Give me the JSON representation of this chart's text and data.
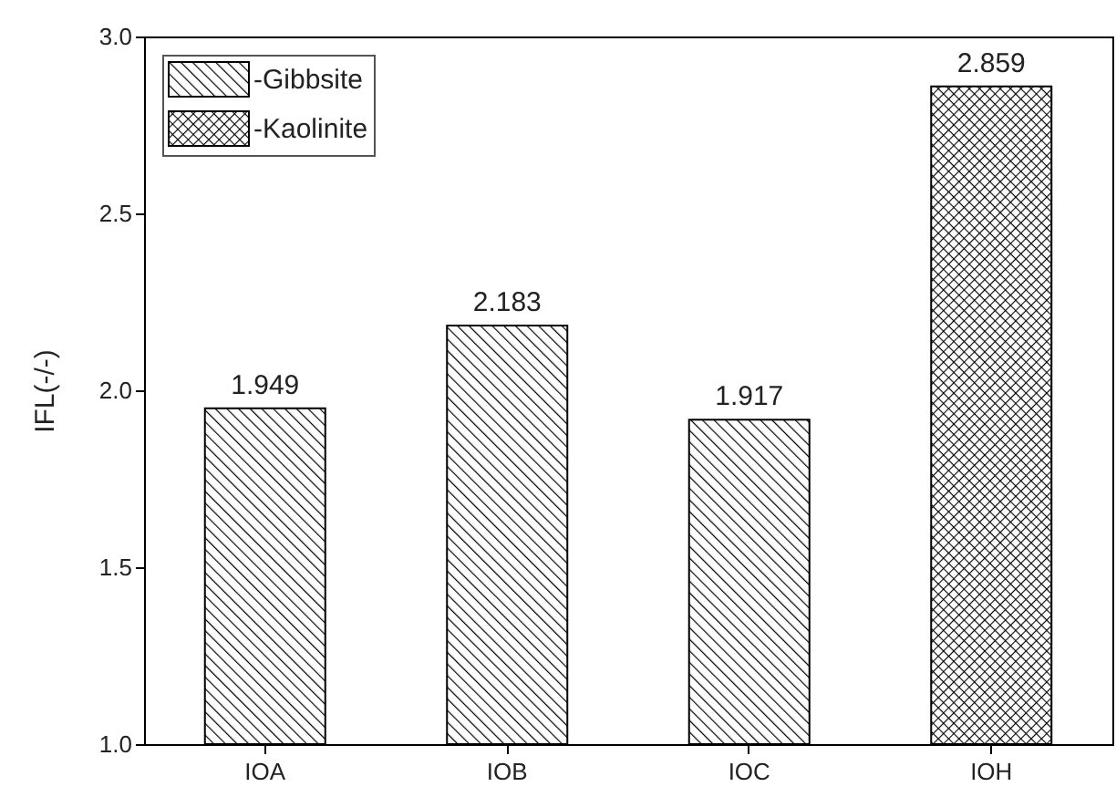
{
  "chart_data": {
    "type": "bar",
    "ylabel": "IFL(-/-)",
    "categories": [
      "IOA",
      "IOB",
      "IOC",
      "IOH"
    ],
    "series": [
      {
        "name": "-Gibbsite",
        "color": "#000000",
        "values": [
          1.949,
          2.183,
          1.917,
          null
        ]
      },
      {
        "name": "-Kaolinite",
        "color": "#000000",
        "values": [
          null,
          null,
          null,
          2.859
        ]
      }
    ],
    "ylim": [
      1.0,
      3.0
    ],
    "yticks": [
      {
        "value": 1.0,
        "label": "1.0"
      },
      1.5,
      {
        "value": 2.0,
        "label": "2.0"
      },
      2.5,
      {
        "value": 3.0,
        "label": "3.0"
      }
    ],
    "data_labels": true,
    "legend": "top left"
  }
}
